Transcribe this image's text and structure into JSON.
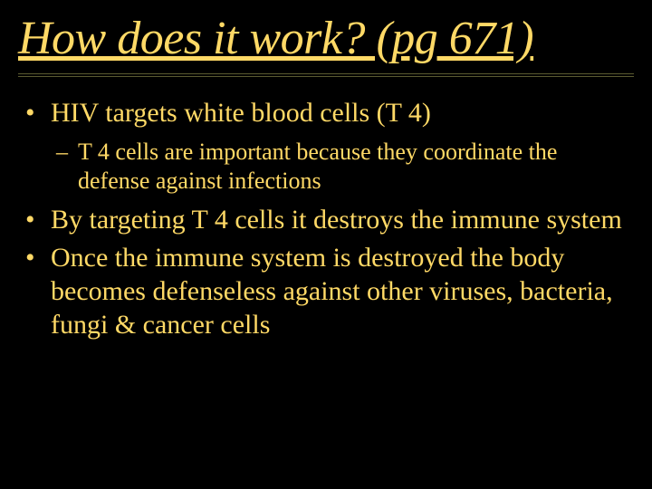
{
  "colors": {
    "background": "#000000",
    "text": "#ffd966",
    "divider": "#5a5a30"
  },
  "typography": {
    "title_fontsize": 52,
    "title_italic": true,
    "title_underline": true,
    "bullet_fontsize": 30,
    "subbullet_fontsize": 26,
    "font_family": "Times New Roman"
  },
  "title": "How does it work? (pg 671)",
  "bullets": [
    {
      "text": "HIV targets white blood cells (T 4)",
      "sub": [
        "T 4 cells are important because they coordinate the defense against infections"
      ]
    },
    {
      "text": "By targeting T 4 cells it destroys the immune system",
      "sub": []
    },
    {
      "text": "Once the immune system is destroyed the body becomes defenseless against other viruses, bacteria, fungi & cancer cells",
      "sub": []
    }
  ]
}
